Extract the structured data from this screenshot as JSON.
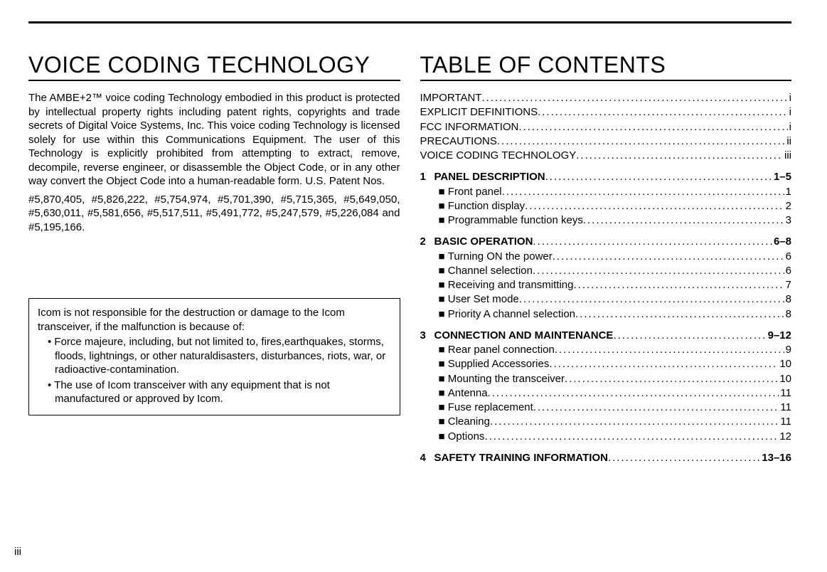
{
  "page_number": "iii",
  "left": {
    "title": "VOICE CODING TECHNOLOGY",
    "paragraph1": "The AMBE+2™ voice coding Technology embodied in this product is protected by intellectual property rights including patent rights, copyrights and trade secrets of Digital Voice Systems, Inc. This voice coding Technology is licensed solely for use within this Communications Equipment. The user of this Technology is explicitly prohibited from attempting to extract, remove, decompile, reverse engineer, or disassemble the Object Code, or in any other way convert the Object Code into a human-readable form. U.S. Patent Nos.",
    "paragraph2": "#5,870,405, #5,826,222, #5,754,974, #5,701,390, #5,715,365, #5,649,050, #5,630,011, #5,581,656, #5,517,511, #5,491,772, #5,247,579, #5,226,084 and #5,195,166.",
    "notice_intro": "Icom is not responsible for the destruction or damage to the Icom transceiver, if the malfunction is because of:",
    "notice_items": [
      "Force majeure, including, but not limited to, fires,earthquakes, storms, floods, lightnings, or other naturaldisasters, disturbances, riots, war, or radioactive-contamination.",
      "The use of Icom transceiver with any equipment that is not manufactured or approved by Icom."
    ]
  },
  "right": {
    "title": "TABLE OF CONTENTS",
    "preliminary": [
      {
        "label": "IMPORTANT",
        "page": "i"
      },
      {
        "label": "EXPLICIT DEFINITIONS",
        "page": "i"
      },
      {
        "label": "FCC INFORMATION",
        "page": "i"
      },
      {
        "label": "PRECAUTIONS",
        "page": "ii"
      },
      {
        "label": "VOICE CODING TECHNOLOGY",
        "page": "iii"
      }
    ],
    "chapters": [
      {
        "num": "1",
        "label": "PANEL DESCRIPTION",
        "page": "1–5",
        "subs": [
          {
            "label": "Front panel",
            "page": "1"
          },
          {
            "label": "Function display",
            "page": "2"
          },
          {
            "label": "Programmable function keys",
            "page": "3"
          }
        ]
      },
      {
        "num": "2",
        "label": "BASIC OPERATION",
        "page": "6–8",
        "subs": [
          {
            "label": "Turning ON the power",
            "page": "6"
          },
          {
            "label": "Channel selection",
            "page": "6"
          },
          {
            "label": "Receiving and transmitting",
            "page": "7"
          },
          {
            "label": "User Set mode",
            "page": "8"
          },
          {
            "label": "Priority A channel selection",
            "page": "8"
          }
        ]
      },
      {
        "num": "3",
        "label": "CONNECTION AND MAINTENANCE",
        "page": "9–12",
        "subs": [
          {
            "label": "Rear panel connection",
            "page": "9"
          },
          {
            "label": "Supplied Accessories",
            "page": "10"
          },
          {
            "label": "Mounting the transceiver",
            "page": "10"
          },
          {
            "label": "Antenna",
            "page": "11"
          },
          {
            "label": "Fuse replacement",
            "page": "11"
          },
          {
            "label": "Cleaning",
            "page": "11"
          },
          {
            "label": "Options",
            "page": "12"
          }
        ]
      },
      {
        "num": "4",
        "label": "SAFETY TRAINING INFORMATION",
        "page": "13–16",
        "subs": []
      }
    ]
  },
  "dots_fill": "........................................................................................................................"
}
